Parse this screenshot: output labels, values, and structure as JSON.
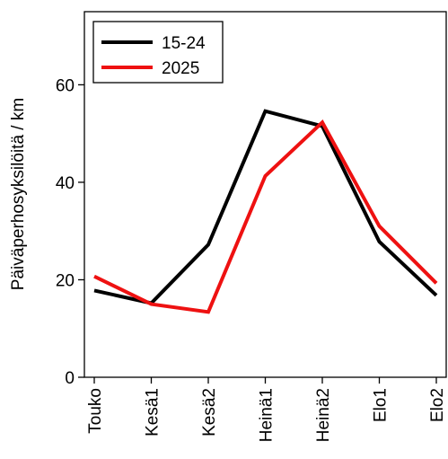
{
  "chart_data": {
    "type": "line",
    "title": "",
    "xlabel": "",
    "ylabel": "Päiväperhosyksilöitä / km",
    "categories": [
      "Touko",
      "Kesä1",
      "Kesä2",
      "Heinä1",
      "Heinä2",
      "Elo1",
      "Elo2"
    ],
    "ylim": [
      0,
      75
    ],
    "yticks": [
      0,
      20,
      40,
      60
    ],
    "grid": false,
    "legend_position": "top-left",
    "series": [
      {
        "name": "15-24",
        "color": "#000000",
        "values": [
          17.8,
          15.2,
          27.2,
          54.6,
          51.5,
          27.8,
          16.8
        ]
      },
      {
        "name": "2025",
        "color": "#ee1111",
        "values": [
          20.7,
          15.0,
          13.4,
          41.3,
          52.3,
          31.0,
          19.3
        ]
      }
    ]
  }
}
